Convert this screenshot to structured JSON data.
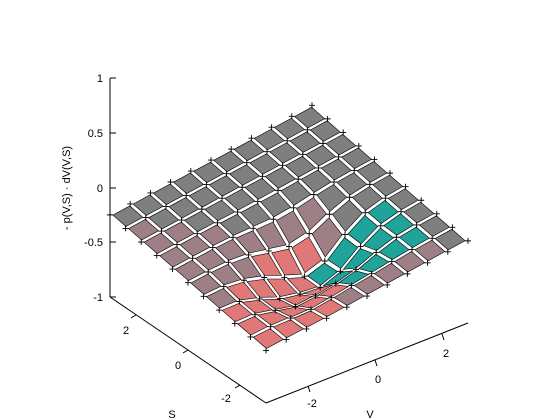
{
  "chart_data": {
    "type": "surface",
    "title": "",
    "xlabel": "V",
    "ylabel": "S",
    "zlabel": "- p(V,S) · dV(V,S)",
    "z_ticks": [
      "1",
      "0.5",
      "0",
      "-0.5",
      "-1"
    ],
    "v_ticks": [
      "-2",
      "0",
      "2"
    ],
    "s_ticks": [
      "2",
      "0",
      "-2"
    ],
    "vlim": [
      -3,
      3
    ],
    "slim": [
      -3,
      3
    ],
    "zlim": [
      -1,
      1
    ],
    "grid": false,
    "grid_n": 11,
    "surface": "z = -0.25 + 0.045*(V + S) - 0.33*exp(-((V-0.2)^2/1.2 + (S+0.8)^2/1.0)) - 0.15*exp(-((V+1.2)^2/0.8 + (S+1.4)^2/0.8))",
    "colors": {
      "high": "#7f7f7f",
      "mid": "#9e7f86",
      "low": "#e07878",
      "teal": "#1fa39a",
      "edge": "#ffffff",
      "marker": "#000000"
    }
  }
}
